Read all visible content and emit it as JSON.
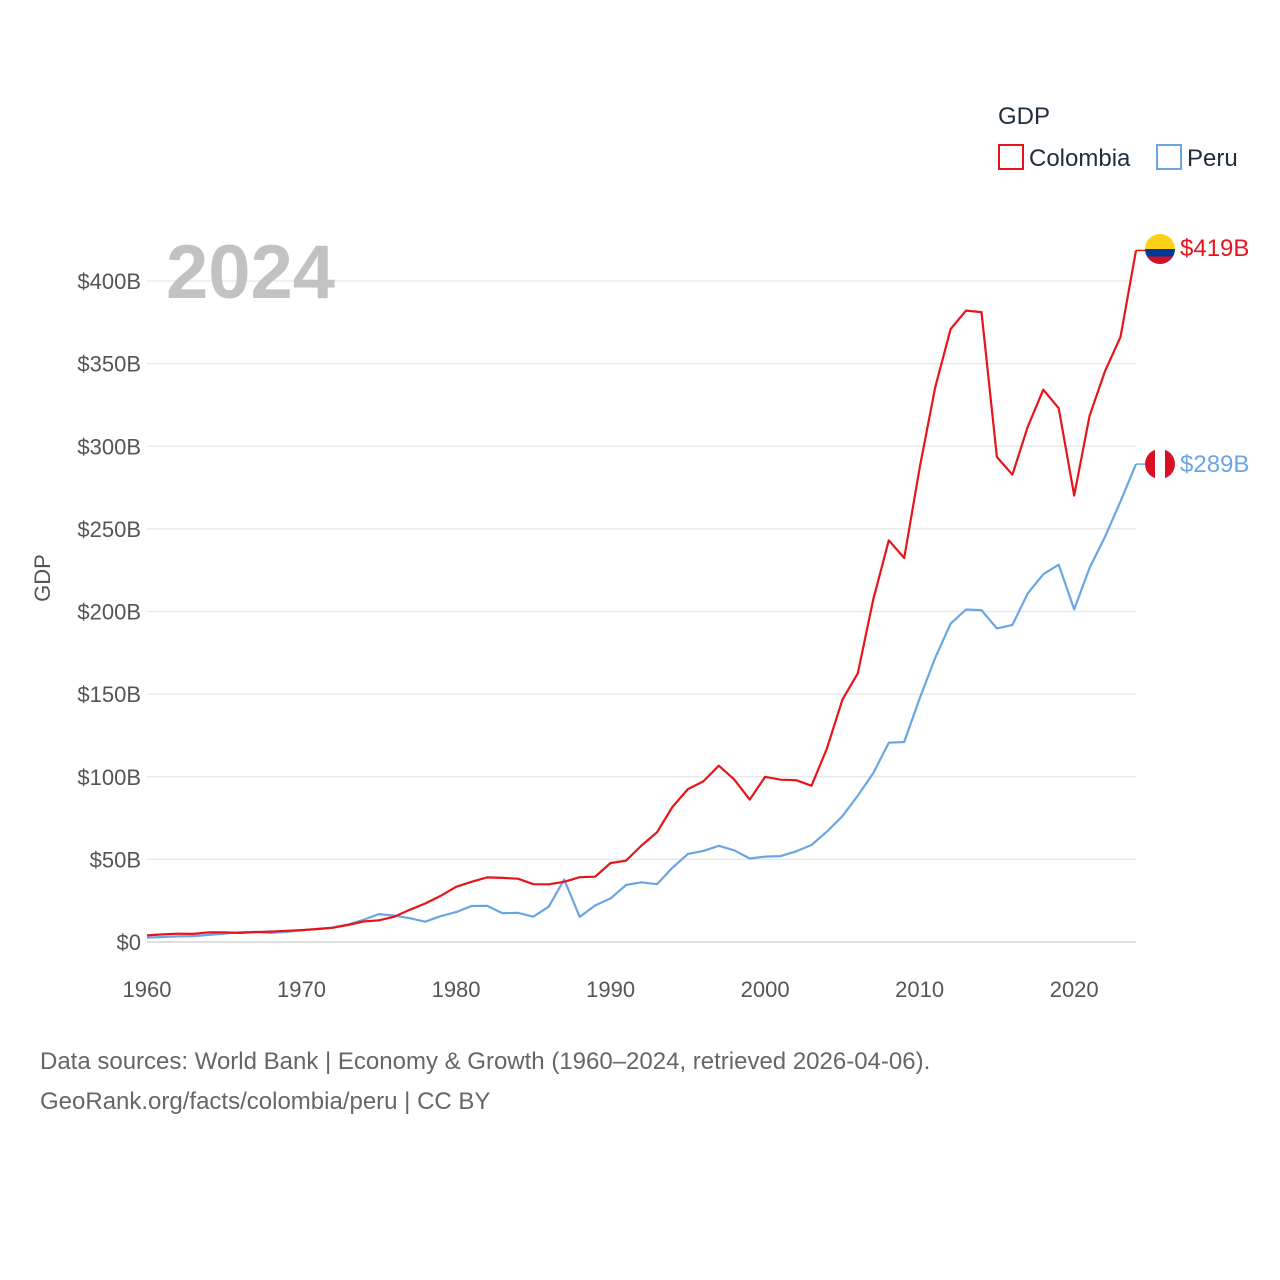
{
  "chart_data": {
    "type": "line",
    "year_label": "2024",
    "ylabel": "GDP",
    "xlabel": "",
    "ylim": [
      0,
      400
    ],
    "y_unit": "billion USD",
    "x_ticks": [
      1960,
      1970,
      1980,
      1990,
      2000,
      2010,
      2020
    ],
    "y_tick_values": [
      0,
      50,
      100,
      150,
      200,
      250,
      300,
      350,
      400
    ],
    "y_tick_labels": [
      "$0",
      "$50B",
      "$100B",
      "$150B",
      "$200B",
      "$250B",
      "$300B",
      "$350B",
      "$400B"
    ],
    "legend": {
      "title": "GDP",
      "position": "top-right"
    },
    "x": [
      1960,
      1961,
      1962,
      1963,
      1964,
      1965,
      1966,
      1967,
      1968,
      1969,
      1970,
      1971,
      1972,
      1973,
      1974,
      1975,
      1976,
      1977,
      1978,
      1979,
      1980,
      1981,
      1982,
      1983,
      1984,
      1985,
      1986,
      1987,
      1988,
      1989,
      1990,
      1991,
      1992,
      1993,
      1994,
      1995,
      1996,
      1997,
      1998,
      1999,
      2000,
      2001,
      2002,
      2003,
      2004,
      2005,
      2006,
      2007,
      2008,
      2009,
      2010,
      2011,
      2012,
      2013,
      2014,
      2015,
      2016,
      2017,
      2018,
      2019,
      2020,
      2021,
      2022,
      2023,
      2024
    ],
    "series": [
      {
        "name": "Colombia",
        "color": "#e8141b",
        "end_label": "$419B",
        "values": [
          4.0,
          4.6,
          5.0,
          4.9,
          5.9,
          5.8,
          5.5,
          6.0,
          6.3,
          6.8,
          7.2,
          7.8,
          8.6,
          10.3,
          12.4,
          13.1,
          15.3,
          19.5,
          23.3,
          27.9,
          33.4,
          36.4,
          39.1,
          38.8,
          38.3,
          35.0,
          34.9,
          36.4,
          39.2,
          39.5,
          47.8,
          49.2,
          58.4,
          66.4,
          81.7,
          92.5,
          97.2,
          106.7,
          98.4,
          86.2,
          100.0,
          98.2,
          97.9,
          94.6,
          117.1,
          146.6,
          162.6,
          207.4,
          243.0,
          232.4,
          287.0,
          335.4,
          370.9,
          382.1,
          381.2,
          293.5,
          282.8,
          311.9,
          334.2,
          323.0,
          270.2,
          318.5,
          345.6,
          366.2,
          418.5
        ]
      },
      {
        "name": "Peru",
        "color": "#6aa6e3",
        "end_label": "$289B",
        "values": [
          2.6,
          3.0,
          3.4,
          3.6,
          4.3,
          5.0,
          5.9,
          6.1,
          5.5,
          6.1,
          7.1,
          7.9,
          8.7,
          10.5,
          13.4,
          16.9,
          16.0,
          14.4,
          12.3,
          15.6,
          18.1,
          21.8,
          21.9,
          17.4,
          17.7,
          15.3,
          21.4,
          37.8,
          15.2,
          22.1,
          26.4,
          34.5,
          36.1,
          35.0,
          44.9,
          53.3,
          55.1,
          58.2,
          55.5,
          50.5,
          51.7,
          52.0,
          54.8,
          58.7,
          66.8,
          76.1,
          88.6,
          102.2,
          120.6,
          121.0,
          147.5,
          171.8,
          192.6,
          201.2,
          200.8,
          189.8,
          191.9,
          211.0,
          222.6,
          228.3,
          201.3,
          226.4,
          245.3,
          266.6,
          289.2
        ]
      }
    ]
  },
  "source": {
    "line1": "Data sources: World Bank | Economy & Growth (1960–2024, retrieved 2026-04-06).",
    "line2": "GeoRank.org/facts/colombia/peru | CC BY"
  }
}
